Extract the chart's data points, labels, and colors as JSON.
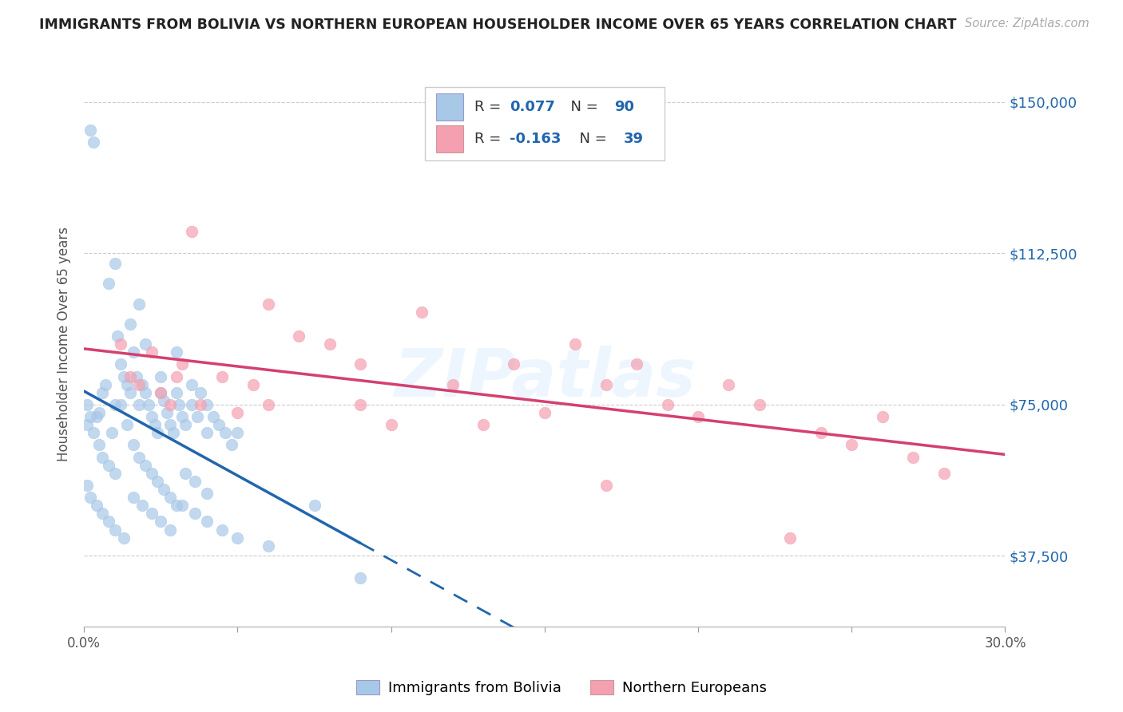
{
  "title": "IMMIGRANTS FROM BOLIVIA VS NORTHERN EUROPEAN HOUSEHOLDER INCOME OVER 65 YEARS CORRELATION CHART",
  "source_text": "Source: ZipAtlas.com",
  "ylabel": "Householder Income Over 65 years",
  "xlim": [
    0.0,
    0.3
  ],
  "ylim": [
    20000,
    160000
  ],
  "yticks": [
    37500,
    75000,
    112500,
    150000
  ],
  "ytick_labels": [
    "$37,500",
    "$75,000",
    "$112,500",
    "$150,000"
  ],
  "xtick_vals": [
    0.0,
    0.05,
    0.1,
    0.15,
    0.2,
    0.25,
    0.3
  ],
  "xtick_labels": [
    "0.0%",
    "",
    "",
    "",
    "",
    "",
    "30.0%"
  ],
  "blue_color": "#a8c8e8",
  "pink_color": "#f4a0b0",
  "blue_line_color": "#2166ac",
  "pink_line_color": "#d44070",
  "watermark": "ZIPatlas",
  "bolivia_x": [
    0.001,
    0.002,
    0.003,
    0.004,
    0.005,
    0.006,
    0.007,
    0.008,
    0.009,
    0.01,
    0.01,
    0.011,
    0.012,
    0.013,
    0.014,
    0.015,
    0.015,
    0.016,
    0.017,
    0.018,
    0.018,
    0.019,
    0.02,
    0.02,
    0.021,
    0.022,
    0.023,
    0.024,
    0.025,
    0.025,
    0.026,
    0.027,
    0.028,
    0.029,
    0.03,
    0.03,
    0.031,
    0.032,
    0.033,
    0.035,
    0.035,
    0.037,
    0.038,
    0.04,
    0.04,
    0.042,
    0.044,
    0.046,
    0.048,
    0.05,
    0.001,
    0.002,
    0.003,
    0.005,
    0.006,
    0.008,
    0.01,
    0.012,
    0.014,
    0.016,
    0.018,
    0.02,
    0.022,
    0.024,
    0.026,
    0.028,
    0.03,
    0.033,
    0.036,
    0.04,
    0.001,
    0.002,
    0.004,
    0.006,
    0.008,
    0.01,
    0.013,
    0.016,
    0.019,
    0.022,
    0.025,
    0.028,
    0.032,
    0.036,
    0.04,
    0.045,
    0.05,
    0.06,
    0.075,
    0.09
  ],
  "bolivia_y": [
    75000,
    143000,
    140000,
    72000,
    73000,
    78000,
    80000,
    105000,
    68000,
    110000,
    75000,
    92000,
    85000,
    82000,
    80000,
    95000,
    78000,
    88000,
    82000,
    100000,
    75000,
    80000,
    78000,
    90000,
    75000,
    72000,
    70000,
    68000,
    78000,
    82000,
    76000,
    73000,
    70000,
    68000,
    88000,
    78000,
    75000,
    72000,
    70000,
    80000,
    75000,
    72000,
    78000,
    75000,
    68000,
    72000,
    70000,
    68000,
    65000,
    68000,
    70000,
    72000,
    68000,
    65000,
    62000,
    60000,
    58000,
    75000,
    70000,
    65000,
    62000,
    60000,
    58000,
    56000,
    54000,
    52000,
    50000,
    58000,
    56000,
    53000,
    55000,
    52000,
    50000,
    48000,
    46000,
    44000,
    42000,
    52000,
    50000,
    48000,
    46000,
    44000,
    50000,
    48000,
    46000,
    44000,
    42000,
    40000,
    50000,
    32000
  ],
  "northern_x": [
    0.012,
    0.015,
    0.018,
    0.022,
    0.025,
    0.028,
    0.032,
    0.035,
    0.038,
    0.045,
    0.05,
    0.055,
    0.06,
    0.07,
    0.08,
    0.09,
    0.1,
    0.11,
    0.12,
    0.14,
    0.15,
    0.16,
    0.17,
    0.18,
    0.19,
    0.2,
    0.21,
    0.22,
    0.24,
    0.25,
    0.26,
    0.27,
    0.28,
    0.03,
    0.06,
    0.09,
    0.13,
    0.17,
    0.23
  ],
  "northern_y": [
    90000,
    82000,
    80000,
    88000,
    78000,
    75000,
    85000,
    118000,
    75000,
    82000,
    73000,
    80000,
    100000,
    92000,
    90000,
    75000,
    70000,
    98000,
    80000,
    85000,
    73000,
    90000,
    80000,
    85000,
    75000,
    72000,
    80000,
    75000,
    68000,
    65000,
    72000,
    62000,
    58000,
    82000,
    75000,
    85000,
    70000,
    55000,
    42000
  ]
}
